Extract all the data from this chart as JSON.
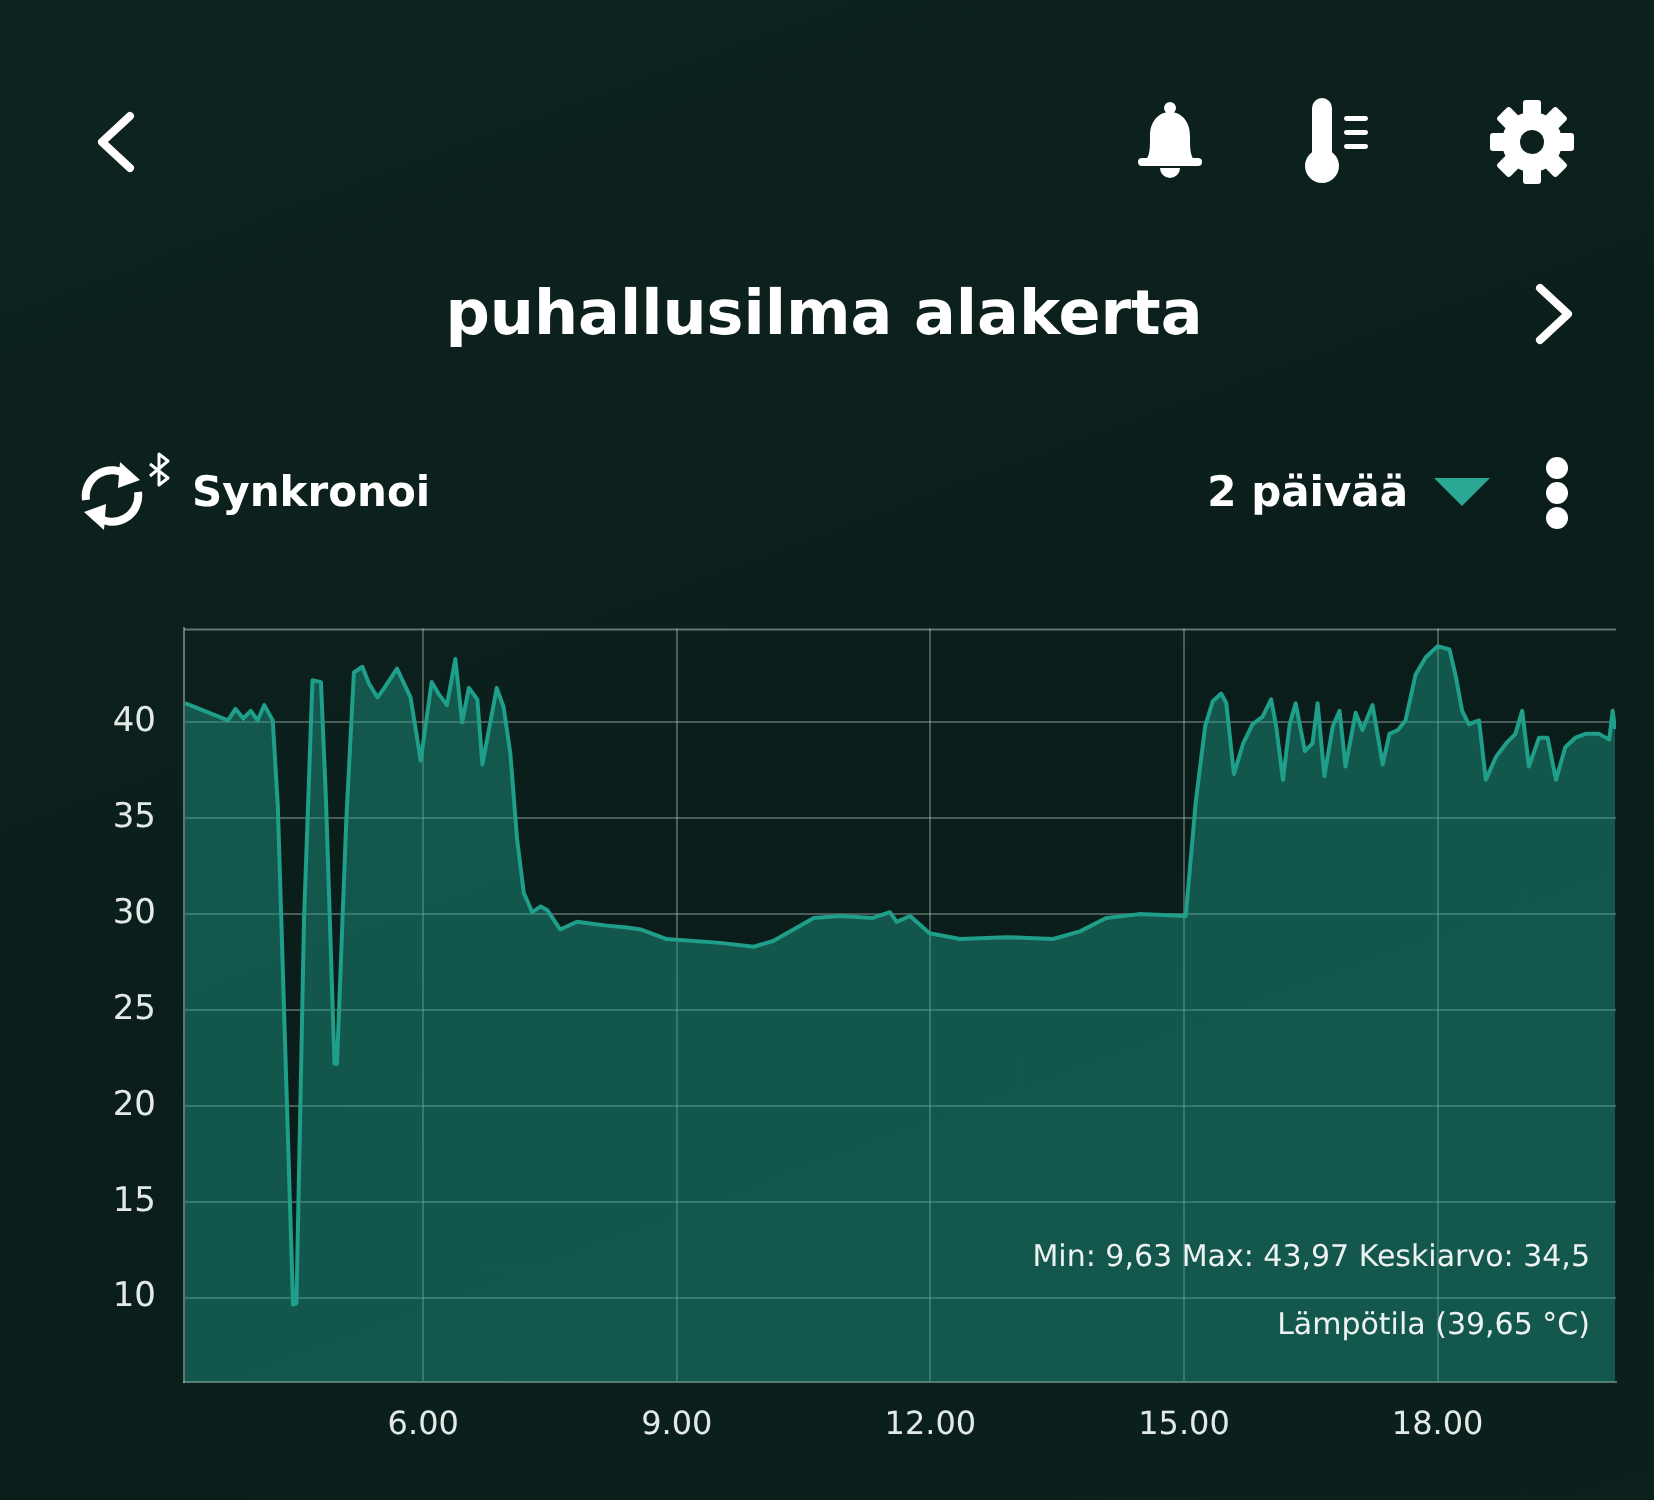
{
  "chart_data": {
    "type": "area",
    "title": "puhallusilma alakerta",
    "annotations": [
      "Synkronoi",
      "2 päivää",
      "Min: 9,63 Max: 43,97 Keskiarvo: 34,5",
      "Lämpötila (39,65 °C)"
    ],
    "x": [
      3.18,
      3.41,
      3.69,
      3.78,
      3.87,
      3.96,
      4.04,
      4.12,
      4.22,
      4.28,
      4.46,
      4.5,
      4.59,
      4.69,
      4.79,
      4.85,
      4.95,
      4.98,
      5.09,
      5.18,
      5.28,
      5.36,
      5.46,
      5.54,
      5.69,
      5.85,
      5.97,
      6.1,
      6.18,
      6.28,
      6.38,
      6.46,
      6.54,
      6.64,
      6.7,
      6.87,
      6.95,
      7.03,
      7.11,
      7.19,
      7.29,
      7.39,
      7.47,
      7.62,
      7.82,
      8.17,
      8.41,
      8.57,
      8.88,
      9.51,
      9.91,
      10.14,
      10.62,
      10.93,
      11.32,
      11.52,
      11.6,
      11.76,
      11.99,
      12.35,
      12.9,
      13.45,
      13.77,
      14.08,
      14.47,
      15.02,
      15.14,
      15.25,
      15.34,
      15.44,
      15.5,
      15.59,
      15.7,
      15.81,
      15.93,
      16.03,
      16.09,
      16.17,
      16.25,
      16.32,
      16.43,
      16.52,
      16.58,
      16.66,
      16.76,
      16.84,
      16.91,
      17.03,
      17.11,
      17.23,
      17.35,
      17.43,
      17.53,
      17.62,
      17.74,
      17.86,
      18.0,
      18.14,
      18.21,
      18.29,
      18.37,
      18.49,
      18.57,
      18.69,
      18.81,
      18.92,
      19.0,
      19.08,
      19.2,
      19.3,
      19.4,
      19.51,
      19.63,
      19.75,
      19.91,
      20.03,
      20.07,
      20.1
    ],
    "values": [
      41.0,
      40.6,
      40.1,
      40.7,
      40.2,
      40.6,
      40.1,
      40.9,
      40.1,
      35.6,
      9.63,
      9.7,
      29.7,
      42.2,
      42.1,
      35.9,
      22.2,
      22.2,
      34.9,
      42.6,
      42.9,
      42.0,
      41.3,
      41.8,
      42.8,
      41.3,
      38.0,
      42.1,
      41.5,
      40.9,
      43.3,
      40.0,
      41.8,
      41.2,
      37.8,
      41.8,
      40.8,
      38.4,
      33.9,
      31.1,
      30.1,
      30.4,
      30.2,
      29.2,
      29.6,
      29.4,
      29.3,
      29.2,
      28.7,
      28.5,
      28.3,
      28.6,
      29.8,
      29.9,
      29.8,
      30.1,
      29.6,
      29.9,
      29.0,
      28.7,
      28.8,
      28.7,
      29.1,
      29.8,
      30.0,
      29.9,
      35.9,
      39.8,
      41.1,
      41.5,
      41.0,
      37.3,
      38.9,
      39.9,
      40.3,
      41.2,
      39.8,
      37.0,
      39.9,
      41.0,
      38.5,
      38.9,
      41.0,
      37.2,
      39.8,
      40.6,
      37.7,
      40.5,
      39.6,
      40.9,
      37.8,
      39.4,
      39.6,
      40.1,
      42.5,
      43.4,
      43.97,
      43.8,
      42.5,
      40.6,
      39.9,
      40.1,
      37.0,
      38.2,
      38.9,
      39.4,
      40.6,
      37.7,
      39.2,
      39.2,
      37.0,
      38.7,
      39.2,
      39.4,
      39.4,
      39.1,
      40.6,
      39.65
    ],
    "color": "#1f9e89",
    "xlim": [
      3.17,
      20.11
    ],
    "xticks": [
      {
        "value": 6,
        "label": "6.00"
      },
      {
        "value": 9,
        "label": "9.00"
      },
      {
        "value": 12,
        "label": "12.00"
      },
      {
        "value": 15,
        "label": "15.00"
      },
      {
        "value": 18,
        "label": "18.00"
      }
    ],
    "ylim": [
      5.6,
      44.9
    ],
    "yticks": [
      10,
      15,
      20,
      25,
      30,
      35,
      40
    ],
    "grid": true,
    "legend": false
  }
}
